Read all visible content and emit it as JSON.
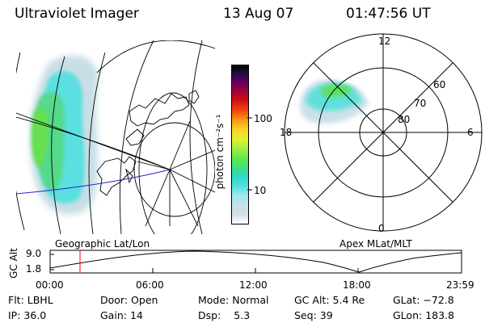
{
  "header": {
    "title": "Ultraviolet Imager",
    "date": "13 Aug 07",
    "time": "01:47:56 UT"
  },
  "colorbar": {
    "unit_label": "photon cm⁻²s⁻¹",
    "ticks": [
      "100",
      "10"
    ],
    "scale": "log",
    "colors": [
      "#ffffff",
      "#d9dde2",
      "#c6e0ea",
      "#9ee8ee",
      "#4ee0e0",
      "#30d8c0",
      "#44e07a",
      "#66e84a",
      "#aaf040",
      "#e6f030",
      "#f8d020",
      "#f89010",
      "#f04010",
      "#d01010",
      "#a00040",
      "#5a0060",
      "#201040",
      "#000000"
    ]
  },
  "polar_plot": {
    "lat_labels": [
      "60",
      "70",
      "80"
    ],
    "mlt_labels": {
      "top": "12",
      "left": "18",
      "right": "6",
      "bottom": "0"
    }
  },
  "timeline": {
    "y_axis_label": "GC Alt",
    "y_ticks": [
      "9.0",
      "1.8"
    ],
    "x_ticks": [
      "00:00",
      "06:00",
      "12:00",
      "18:00",
      "23:59"
    ],
    "left_caption": "Geographic Lat/Lon",
    "right_caption": "Apex MLat/MLT",
    "marker_color": "#ff0000"
  },
  "status": {
    "filter_label": "Flt:",
    "filter_value": "LBHL",
    "ip_label": "IP:",
    "ip_value": "36.0",
    "door_label": "Door:",
    "door_value": "Open",
    "gain_label": "Gain:",
    "gain_value": "14",
    "mode_label": "Mode:",
    "mode_value": "Normal",
    "dsp_label": "Dsp:",
    "dsp_value": "5.3",
    "gcalt_label": "GC Alt:",
    "gcalt_value": "5.4 Re",
    "seq_label": "Seq:",
    "seq_value": "39",
    "glat_label": "GLat:",
    "glat_value": "−72.8",
    "glon_label": "GLon:",
    "glon_value": "183.8"
  }
}
